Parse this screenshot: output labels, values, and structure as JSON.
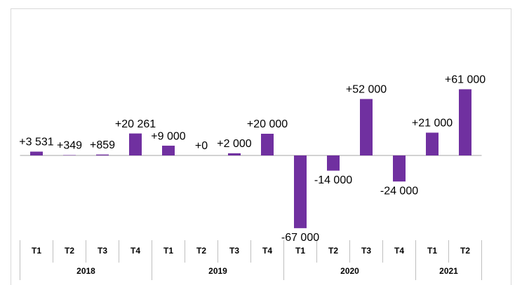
{
  "chart_data": {
    "type": "bar",
    "categories": [
      "T1",
      "T2",
      "T3",
      "T4",
      "T1",
      "T2",
      "T3",
      "T4",
      "T1",
      "T2",
      "T3",
      "T4",
      "T1",
      "T2"
    ],
    "groups": [
      {
        "label": "2018",
        "size": 4
      },
      {
        "label": "2019",
        "size": 4
      },
      {
        "label": "2020",
        "size": 4
      },
      {
        "label": "2021",
        "size": 2
      }
    ],
    "values": [
      3531,
      349,
      859,
      20261,
      9000,
      0,
      2000,
      20000,
      -67000,
      -14000,
      52000,
      -24000,
      21000,
      61000
    ],
    "value_labels": [
      "+3 531",
      "+349",
      "+859",
      "+20 261",
      "+9 000",
      "+0",
      "+2 000",
      "+20 000",
      "-67 000",
      "-14 000",
      "+52 000",
      "-24 000",
      "+21 000",
      "+61 000"
    ],
    "color": "#7030a0",
    "ylim": [
      -80000,
      120000
    ],
    "grid": false
  }
}
